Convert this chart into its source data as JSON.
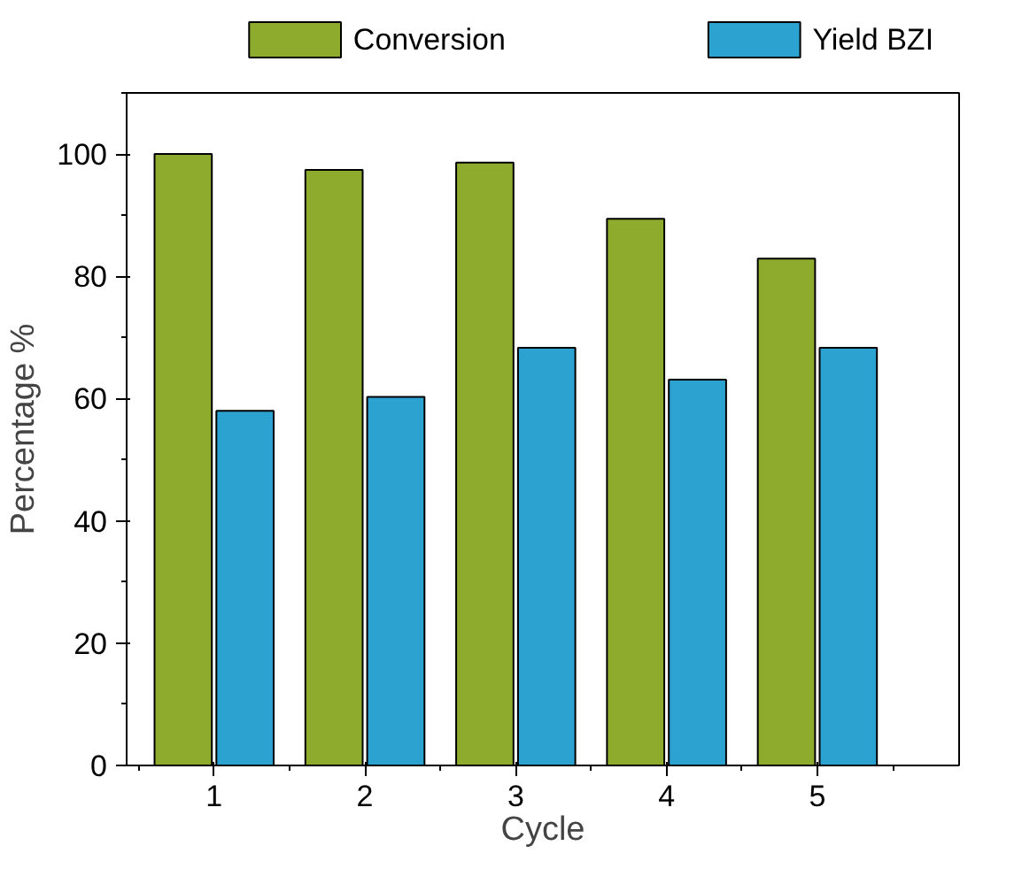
{
  "chart_data": {
    "type": "bar",
    "xlabel": "Cycle",
    "ylabel": "Percentage %",
    "categories": [
      "1",
      "2",
      "3",
      "4",
      "5"
    ],
    "series": [
      {
        "name": "Conversion",
        "color": "#8fab2e",
        "values": [
          100,
          97.4,
          98.6,
          89.4,
          82.9
        ]
      },
      {
        "name": "Yield BZI",
        "color": "#2ca2d0",
        "values": [
          58.0,
          60.3,
          68.3,
          63.1,
          68.3
        ]
      }
    ],
    "ylim": [
      0,
      110
    ],
    "yticks": [
      0,
      20,
      40,
      60,
      80,
      100
    ],
    "grid": false,
    "legend": "top"
  }
}
